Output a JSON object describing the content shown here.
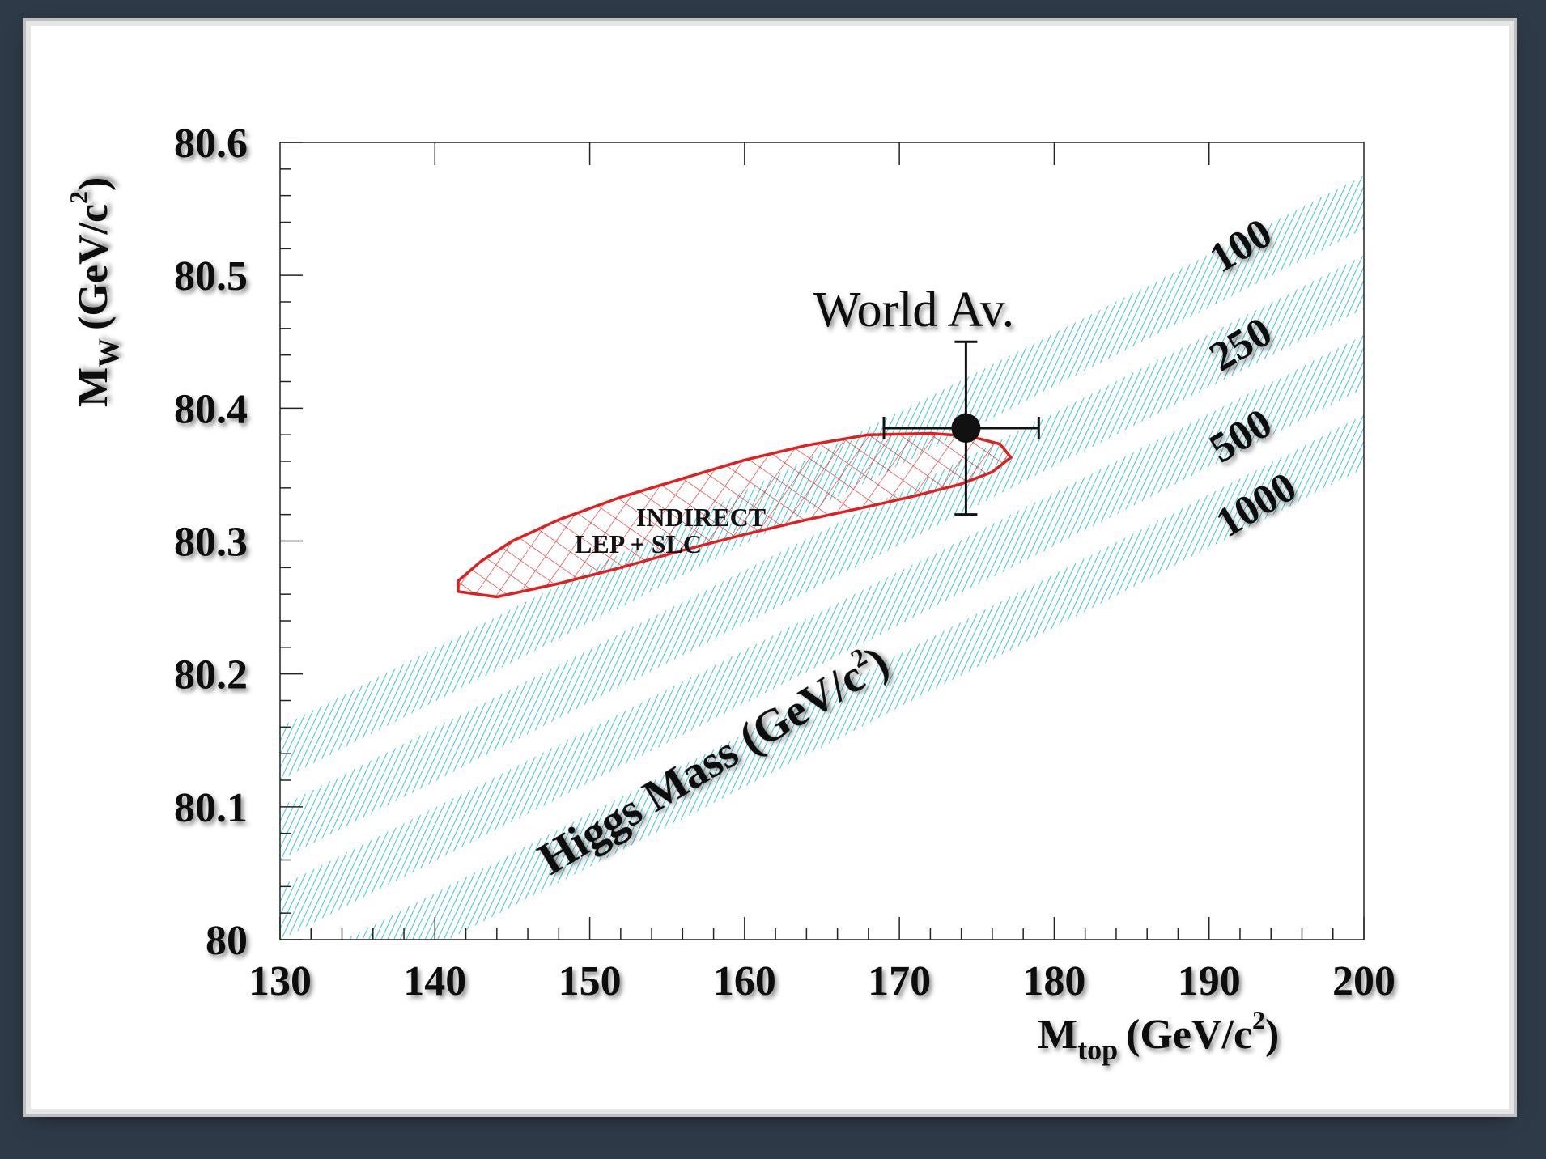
{
  "chart_data": {
    "type": "area",
    "xlabel_main": "M",
    "xlabel_sub": "top",
    "xlabel_unit_pre": "(GeV/c",
    "xlabel_unit_sup": "2",
    "xlabel_unit_post": ")",
    "ylabel_main": "M",
    "ylabel_sub": "W",
    "ylabel_unit_pre": "(GeV/c",
    "ylabel_unit_sup": "2",
    "ylabel_unit_post": ")",
    "xlim": [
      130,
      200
    ],
    "ylim": [
      80,
      80.6
    ],
    "x_ticks": [
      130,
      140,
      150,
      160,
      170,
      180,
      190,
      200
    ],
    "x_tick_labels": [
      "130",
      "140",
      "150",
      "160",
      "170",
      "180",
      "190",
      "200"
    ],
    "y_ticks": [
      80,
      80.1,
      80.2,
      80.3,
      80.4,
      80.5,
      80.6
    ],
    "y_tick_labels": [
      "80",
      "80.1",
      "80.2",
      "80.3",
      "80.4",
      "80.5",
      "80.6"
    ],
    "band_color": "#3cc8d8",
    "ellipse_color": "#e02020",
    "bands": [
      {
        "name": "100",
        "lower": [
          [
            130,
            80.12
          ],
          [
            200,
            80.535
          ]
        ],
        "width": 0.04
      },
      {
        "name": "250",
        "lower": [
          [
            130,
            80.06
          ],
          [
            200,
            80.475
          ]
        ],
        "width": 0.04
      },
      {
        "name": "500",
        "lower": [
          [
            130,
            80.0
          ],
          [
            200,
            80.415
          ]
        ],
        "width": 0.04
      },
      {
        "name": "1000",
        "lower": [
          [
            130,
            79.935
          ],
          [
            200,
            80.355
          ]
        ],
        "width": 0.04
      }
    ],
    "band_title_pre": "Higgs Mass (GeV/c",
    "band_title_sup": "2",
    "band_title_post": ")",
    "world_average": {
      "label": "World Av.",
      "x": 174.3,
      "y": 80.385,
      "x_err": [
        169,
        179
      ],
      "y_err": [
        80.32,
        80.45
      ]
    },
    "indirect_region": {
      "label_line1": "INDIRECT",
      "label_line2": "LEP + SLC",
      "contour": [
        [
          141.5,
          80.262
        ],
        [
          144,
          80.258
        ],
        [
          148,
          80.268
        ],
        [
          152,
          80.28
        ],
        [
          156,
          80.293
        ],
        [
          160,
          80.305
        ],
        [
          164,
          80.316
        ],
        [
          168,
          80.326
        ],
        [
          171,
          80.334
        ],
        [
          174,
          80.343
        ],
        [
          176,
          80.352
        ],
        [
          177.2,
          80.363
        ],
        [
          176.5,
          80.373
        ],
        [
          174.5,
          80.379
        ],
        [
          172,
          80.381
        ],
        [
          168,
          80.38
        ],
        [
          164,
          80.372
        ],
        [
          160,
          80.361
        ],
        [
          156,
          80.347
        ],
        [
          152,
          80.333
        ],
        [
          148,
          80.316
        ],
        [
          145,
          80.3
        ],
        [
          143,
          80.285
        ],
        [
          141.5,
          80.27
        ]
      ]
    }
  }
}
